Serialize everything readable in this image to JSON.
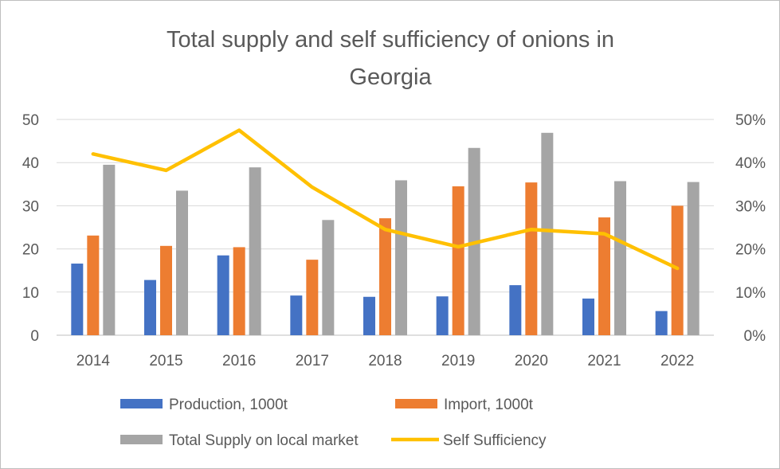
{
  "chart_data": {
    "type": "bar",
    "title_lines": [
      "Total supply and self sufficiency of onions in",
      "Georgia"
    ],
    "categories": [
      "2014",
      "2015",
      "2016",
      "2017",
      "2018",
      "2019",
      "2020",
      "2021",
      "2022"
    ],
    "series": [
      {
        "name": "Production, 1000t",
        "type": "bar",
        "axis": "left",
        "color": "#4472c4",
        "values": [
          16.6,
          12.8,
          18.5,
          9.2,
          8.9,
          9.0,
          11.6,
          8.5,
          5.6
        ]
      },
      {
        "name": "Import, 1000t",
        "type": "bar",
        "axis": "left",
        "color": "#ed7d31",
        "values": [
          23.1,
          20.7,
          20.4,
          17.5,
          27.1,
          34.5,
          35.4,
          27.3,
          30.0
        ]
      },
      {
        "name": "Total Supply on local market",
        "type": "bar",
        "axis": "left",
        "color": "#a5a5a5",
        "values": [
          39.5,
          33.5,
          38.9,
          26.7,
          35.9,
          43.4,
          46.9,
          35.7,
          35.5
        ]
      },
      {
        "name": "Self Sufficiency",
        "type": "line",
        "axis": "right",
        "color": "#ffc000",
        "values": [
          0.42,
          0.382,
          0.475,
          0.343,
          0.245,
          0.205,
          0.245,
          0.235,
          0.155
        ]
      }
    ],
    "y_left": {
      "min": 0,
      "max": 50,
      "ticks": [
        0,
        10,
        20,
        30,
        40,
        50
      ],
      "tick_labels": [
        "0",
        "10",
        "20",
        "30",
        "40",
        "50"
      ]
    },
    "y_right": {
      "min": 0,
      "max": 0.5,
      "ticks": [
        0,
        0.1,
        0.2,
        0.3,
        0.4,
        0.5
      ],
      "tick_labels": [
        "0%",
        "10%",
        "20%",
        "30%",
        "40%",
        "50%"
      ]
    },
    "gridlines": true,
    "legend_position": "bottom"
  }
}
